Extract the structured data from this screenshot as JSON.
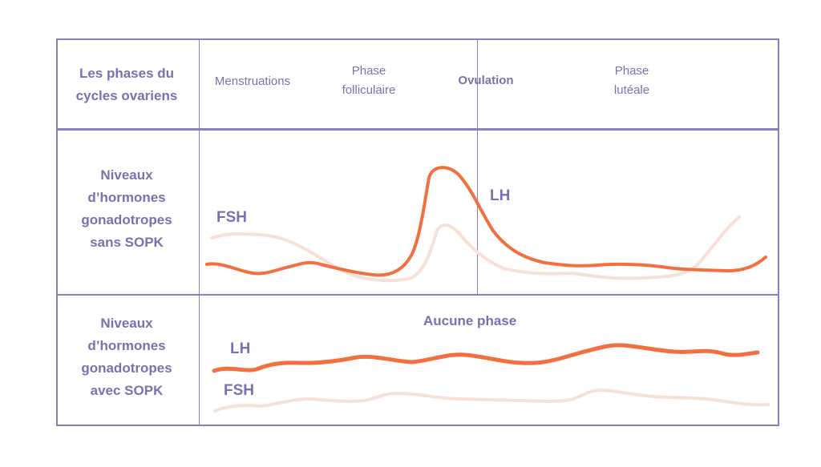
{
  "rows": {
    "header_label": "Les phases du\ncycles ovariens",
    "row1_label": "Niveaux\nd’hormones\ngonadotropes\nsans SOPK",
    "row2_label": "Niveaux\nd’hormones\ngonadotropes\navec SOPK"
  },
  "phases": {
    "menstruations": "Menstruations",
    "folliculaire": "Phase\nfolliculaire",
    "ovulation": "Ovulation",
    "luteale": "Phase\nlutéale"
  },
  "row1": {
    "fsh_label": "FSH",
    "lh_label": "LH"
  },
  "row2": {
    "none_label": "Aucune phase",
    "lh_label": "LH",
    "fsh_label": "FSH"
  },
  "colors": {
    "frame": "#8a80b7",
    "text": "#7b70b0",
    "lh_curve": "#f2703f",
    "fsh_curve": "#f7e0d6"
  }
}
